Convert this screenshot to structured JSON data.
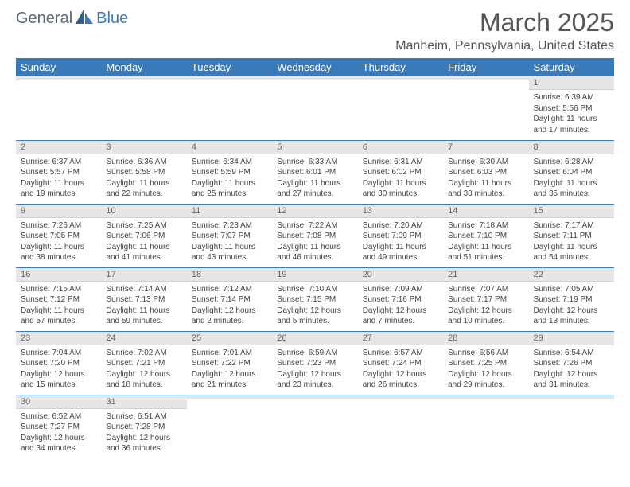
{
  "brand": {
    "part1": "General",
    "part2": "Blue"
  },
  "title": "March 2025",
  "location": "Manheim, Pennsylvania, United States",
  "colors": {
    "header_bg": "#3a7ab8",
    "header_fg": "#ffffff",
    "daynum_bg": "#e6e6e6",
    "row_border": "#3a7ab8",
    "logo_gray": "#5a6a78",
    "logo_blue": "#3a7ab8"
  },
  "day_headers": [
    "Sunday",
    "Monday",
    "Tuesday",
    "Wednesday",
    "Thursday",
    "Friday",
    "Saturday"
  ],
  "weeks": [
    [
      {
        "n": "",
        "sr": "",
        "ss": "",
        "dl": ""
      },
      {
        "n": "",
        "sr": "",
        "ss": "",
        "dl": ""
      },
      {
        "n": "",
        "sr": "",
        "ss": "",
        "dl": ""
      },
      {
        "n": "",
        "sr": "",
        "ss": "",
        "dl": ""
      },
      {
        "n": "",
        "sr": "",
        "ss": "",
        "dl": ""
      },
      {
        "n": "",
        "sr": "",
        "ss": "",
        "dl": ""
      },
      {
        "n": "1",
        "sr": "Sunrise: 6:39 AM",
        "ss": "Sunset: 5:56 PM",
        "dl": "Daylight: 11 hours and 17 minutes."
      }
    ],
    [
      {
        "n": "2",
        "sr": "Sunrise: 6:37 AM",
        "ss": "Sunset: 5:57 PM",
        "dl": "Daylight: 11 hours and 19 minutes."
      },
      {
        "n": "3",
        "sr": "Sunrise: 6:36 AM",
        "ss": "Sunset: 5:58 PM",
        "dl": "Daylight: 11 hours and 22 minutes."
      },
      {
        "n": "4",
        "sr": "Sunrise: 6:34 AM",
        "ss": "Sunset: 5:59 PM",
        "dl": "Daylight: 11 hours and 25 minutes."
      },
      {
        "n": "5",
        "sr": "Sunrise: 6:33 AM",
        "ss": "Sunset: 6:01 PM",
        "dl": "Daylight: 11 hours and 27 minutes."
      },
      {
        "n": "6",
        "sr": "Sunrise: 6:31 AM",
        "ss": "Sunset: 6:02 PM",
        "dl": "Daylight: 11 hours and 30 minutes."
      },
      {
        "n": "7",
        "sr": "Sunrise: 6:30 AM",
        "ss": "Sunset: 6:03 PM",
        "dl": "Daylight: 11 hours and 33 minutes."
      },
      {
        "n": "8",
        "sr": "Sunrise: 6:28 AM",
        "ss": "Sunset: 6:04 PM",
        "dl": "Daylight: 11 hours and 35 minutes."
      }
    ],
    [
      {
        "n": "9",
        "sr": "Sunrise: 7:26 AM",
        "ss": "Sunset: 7:05 PM",
        "dl": "Daylight: 11 hours and 38 minutes."
      },
      {
        "n": "10",
        "sr": "Sunrise: 7:25 AM",
        "ss": "Sunset: 7:06 PM",
        "dl": "Daylight: 11 hours and 41 minutes."
      },
      {
        "n": "11",
        "sr": "Sunrise: 7:23 AM",
        "ss": "Sunset: 7:07 PM",
        "dl": "Daylight: 11 hours and 43 minutes."
      },
      {
        "n": "12",
        "sr": "Sunrise: 7:22 AM",
        "ss": "Sunset: 7:08 PM",
        "dl": "Daylight: 11 hours and 46 minutes."
      },
      {
        "n": "13",
        "sr": "Sunrise: 7:20 AM",
        "ss": "Sunset: 7:09 PM",
        "dl": "Daylight: 11 hours and 49 minutes."
      },
      {
        "n": "14",
        "sr": "Sunrise: 7:18 AM",
        "ss": "Sunset: 7:10 PM",
        "dl": "Daylight: 11 hours and 51 minutes."
      },
      {
        "n": "15",
        "sr": "Sunrise: 7:17 AM",
        "ss": "Sunset: 7:11 PM",
        "dl": "Daylight: 11 hours and 54 minutes."
      }
    ],
    [
      {
        "n": "16",
        "sr": "Sunrise: 7:15 AM",
        "ss": "Sunset: 7:12 PM",
        "dl": "Daylight: 11 hours and 57 minutes."
      },
      {
        "n": "17",
        "sr": "Sunrise: 7:14 AM",
        "ss": "Sunset: 7:13 PM",
        "dl": "Daylight: 11 hours and 59 minutes."
      },
      {
        "n": "18",
        "sr": "Sunrise: 7:12 AM",
        "ss": "Sunset: 7:14 PM",
        "dl": "Daylight: 12 hours and 2 minutes."
      },
      {
        "n": "19",
        "sr": "Sunrise: 7:10 AM",
        "ss": "Sunset: 7:15 PM",
        "dl": "Daylight: 12 hours and 5 minutes."
      },
      {
        "n": "20",
        "sr": "Sunrise: 7:09 AM",
        "ss": "Sunset: 7:16 PM",
        "dl": "Daylight: 12 hours and 7 minutes."
      },
      {
        "n": "21",
        "sr": "Sunrise: 7:07 AM",
        "ss": "Sunset: 7:17 PM",
        "dl": "Daylight: 12 hours and 10 minutes."
      },
      {
        "n": "22",
        "sr": "Sunrise: 7:05 AM",
        "ss": "Sunset: 7:19 PM",
        "dl": "Daylight: 12 hours and 13 minutes."
      }
    ],
    [
      {
        "n": "23",
        "sr": "Sunrise: 7:04 AM",
        "ss": "Sunset: 7:20 PM",
        "dl": "Daylight: 12 hours and 15 minutes."
      },
      {
        "n": "24",
        "sr": "Sunrise: 7:02 AM",
        "ss": "Sunset: 7:21 PM",
        "dl": "Daylight: 12 hours and 18 minutes."
      },
      {
        "n": "25",
        "sr": "Sunrise: 7:01 AM",
        "ss": "Sunset: 7:22 PM",
        "dl": "Daylight: 12 hours and 21 minutes."
      },
      {
        "n": "26",
        "sr": "Sunrise: 6:59 AM",
        "ss": "Sunset: 7:23 PM",
        "dl": "Daylight: 12 hours and 23 minutes."
      },
      {
        "n": "27",
        "sr": "Sunrise: 6:57 AM",
        "ss": "Sunset: 7:24 PM",
        "dl": "Daylight: 12 hours and 26 minutes."
      },
      {
        "n": "28",
        "sr": "Sunrise: 6:56 AM",
        "ss": "Sunset: 7:25 PM",
        "dl": "Daylight: 12 hours and 29 minutes."
      },
      {
        "n": "29",
        "sr": "Sunrise: 6:54 AM",
        "ss": "Sunset: 7:26 PM",
        "dl": "Daylight: 12 hours and 31 minutes."
      }
    ],
    [
      {
        "n": "30",
        "sr": "Sunrise: 6:52 AM",
        "ss": "Sunset: 7:27 PM",
        "dl": "Daylight: 12 hours and 34 minutes."
      },
      {
        "n": "31",
        "sr": "Sunrise: 6:51 AM",
        "ss": "Sunset: 7:28 PM",
        "dl": "Daylight: 12 hours and 36 minutes."
      },
      {
        "n": "",
        "sr": "",
        "ss": "",
        "dl": ""
      },
      {
        "n": "",
        "sr": "",
        "ss": "",
        "dl": ""
      },
      {
        "n": "",
        "sr": "",
        "ss": "",
        "dl": ""
      },
      {
        "n": "",
        "sr": "",
        "ss": "",
        "dl": ""
      },
      {
        "n": "",
        "sr": "",
        "ss": "",
        "dl": ""
      }
    ]
  ]
}
